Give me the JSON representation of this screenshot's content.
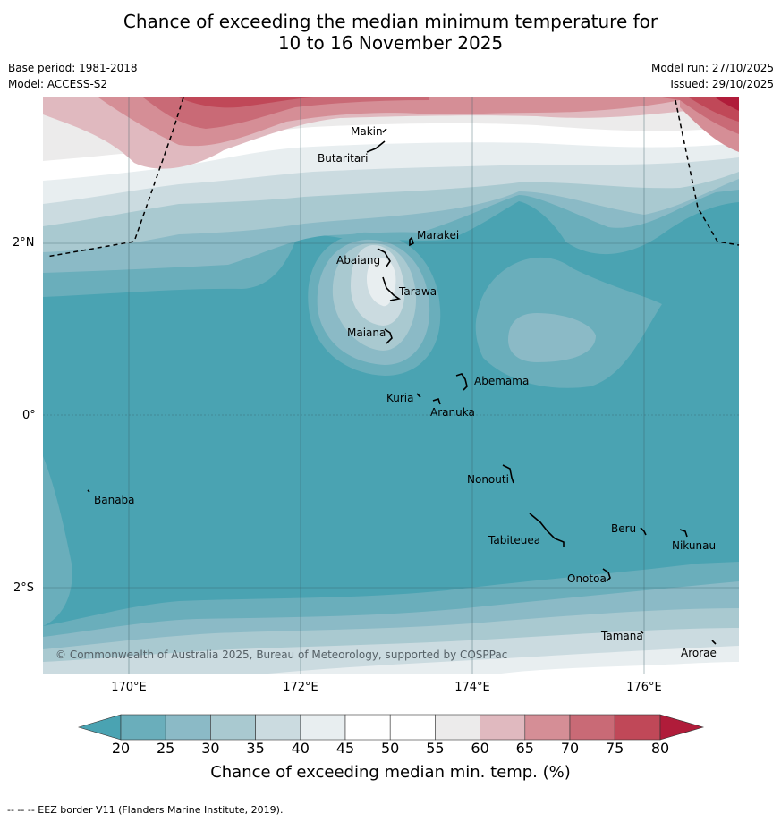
{
  "header": {
    "title_line1": "Chance of exceeding the median minimum temperature for",
    "title_line2": "10 to 16 November 2025",
    "base_period": "Base period: 1981-2018",
    "model": "Model: ACCESS-S2",
    "model_run": "Model run: 27/10/2025",
    "issued": "Issued: 29/10/2025"
  },
  "map": {
    "lat_labels": [
      "2°N",
      "0°",
      "2°S"
    ],
    "lon_labels": [
      "170°E",
      "172°E",
      "174°E",
      "176°E"
    ],
    "islands": [
      "Makin",
      "Butaritari",
      "Marakei",
      "Abaiang",
      "Tarawa",
      "Maiana",
      "Abemama",
      "Kuria",
      "Aranuka",
      "Nonouti",
      "Banaba",
      "Tabiteuea",
      "Beru",
      "Nikunau",
      "Onotoa",
      "Tamana",
      "Arorae"
    ],
    "copyright": "© Commonwealth of Australia 2025, Bureau of Meteorology, supported by COSPPac"
  },
  "colorbar": {
    "ticks": [
      "20",
      "25",
      "30",
      "35",
      "40",
      "45",
      "50",
      "55",
      "60",
      "65",
      "70",
      "75",
      "80"
    ],
    "colors": {
      "below20": "#4aa3b2",
      "b20": "#6aaebb",
      "b25": "#8bbac6",
      "b30": "#a9c9d0",
      "b35": "#cbdbe0",
      "b40": "#e8eef0",
      "b45": "#ffffff",
      "b50": "#ffffff",
      "b55": "#ecebeb",
      "b60": "#e0b9bf",
      "b65": "#d58e96",
      "b70": "#c96a76",
      "b75": "#c04858",
      "above80": "#b01c3a"
    },
    "label": "Chance of exceeding median min. temp. (%)"
  },
  "footer": {
    "legend": "--  --  -- EEZ border V11 (Flanders Marine Institute, 2019)."
  }
}
